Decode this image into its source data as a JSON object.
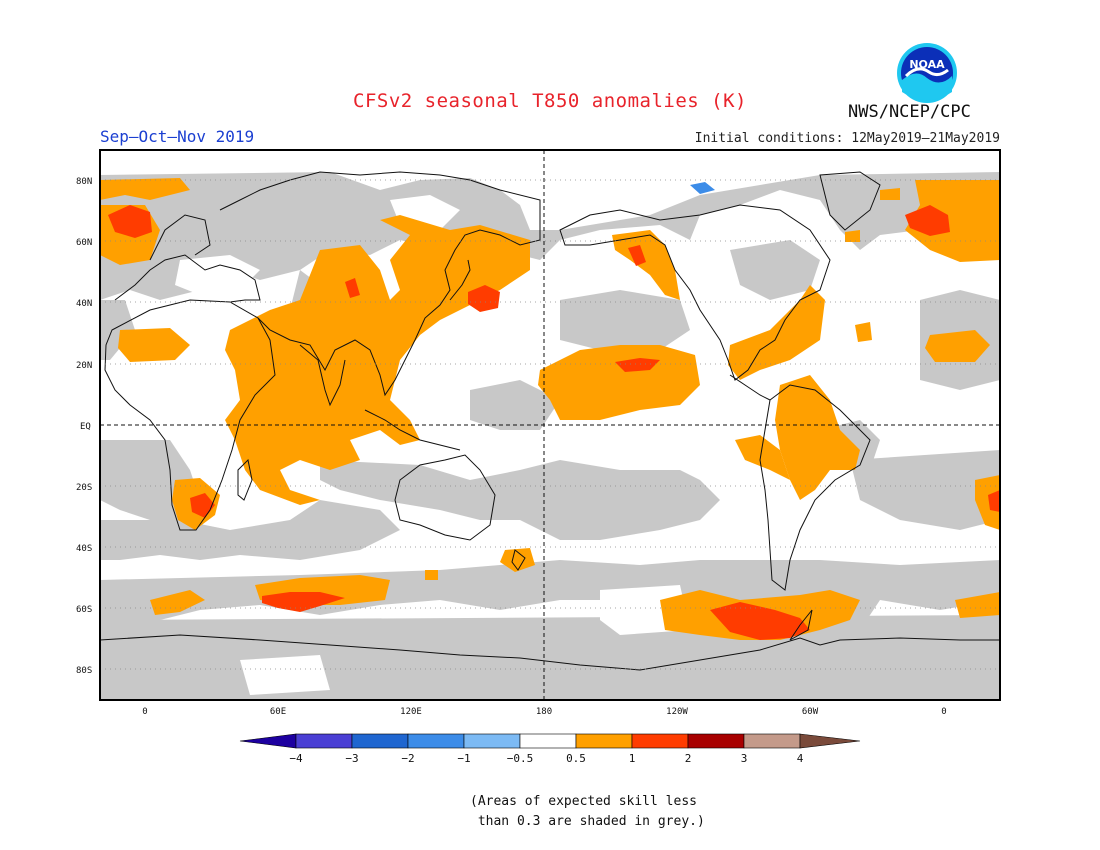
{
  "title": "CFSv2 seasonal T850 anomalies (K)",
  "season": "Sep–Oct–Nov 2019",
  "initial_conditions": "Initial conditions: 12May2019–21May2019",
  "agency": "NWS/NCEP/CPC",
  "logo_text": "NOAA",
  "lat_labels": [
    "80N",
    "60N",
    "40N",
    "20N",
    "EQ",
    "20S",
    "40S",
    "60S",
    "80S"
  ],
  "lon_labels": [
    "0",
    "60E",
    "120E",
    "180",
    "120W",
    "60W",
    "0"
  ],
  "colorbar": {
    "labels": [
      "−4",
      "−3",
      "−2",
      "−1",
      "−0.5",
      "0.5",
      "1",
      "2",
      "3",
      "4"
    ],
    "colors": [
      "#1d00a0",
      "#4a3fd4",
      "#1f66d0",
      "#3c8ce8",
      "#7cbaf4",
      "#ffffff",
      "#ffa000",
      "#ff3c00",
      "#a80000",
      "#c49a8a",
      "#7a4a3a"
    ]
  },
  "note": "(Areas of expected skill less\n than 0.3 are shaded in grey.)",
  "colors": {
    "grey": "#c8c8c8",
    "orange": "#ffa000",
    "red": "#ff3c00",
    "title": "#e8232b",
    "season": "#1b3fd1"
  }
}
